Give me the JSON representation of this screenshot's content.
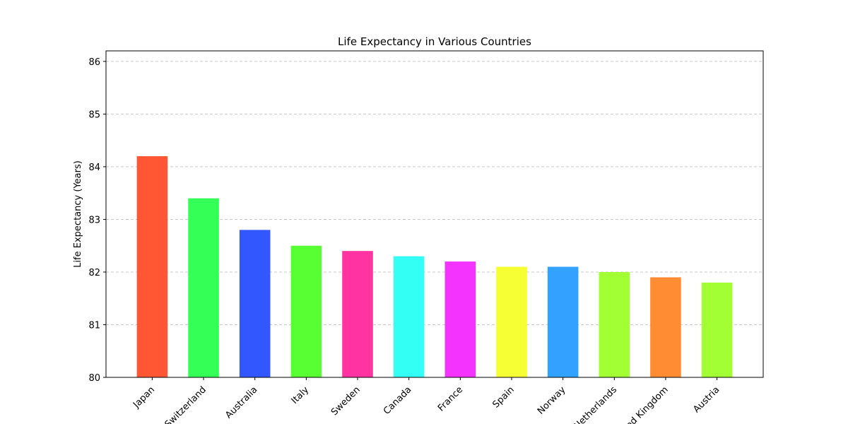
{
  "chart_data": {
    "type": "bar",
    "title": "Life Expectancy in Various Countries",
    "xlabel": "",
    "ylabel": "Life Expectancy (Years)",
    "categories": [
      "Japan",
      "Switzerland",
      "Australia",
      "Italy",
      "Sweden",
      "Canada",
      "France",
      "Spain",
      "Norway",
      "Netherlands",
      "United Kingdom",
      "Austria"
    ],
    "values": [
      84.2,
      83.4,
      82.8,
      82.5,
      82.4,
      82.3,
      82.2,
      82.1,
      82.1,
      82.0,
      81.9,
      81.8
    ],
    "colors": [
      "#FF5733",
      "#33FF57",
      "#3357FF",
      "#57FF33",
      "#FF33A1",
      "#33FFF5",
      "#F533FF",
      "#F5FF33",
      "#33A1FF",
      "#A1FF33",
      "#FF8C33",
      "#A1FF33"
    ],
    "ylim": [
      80,
      86.2
    ],
    "yticks": [
      80,
      81,
      82,
      83,
      84,
      85,
      86
    ],
    "grid": "y-dashed",
    "xtick_rotation": 45
  }
}
